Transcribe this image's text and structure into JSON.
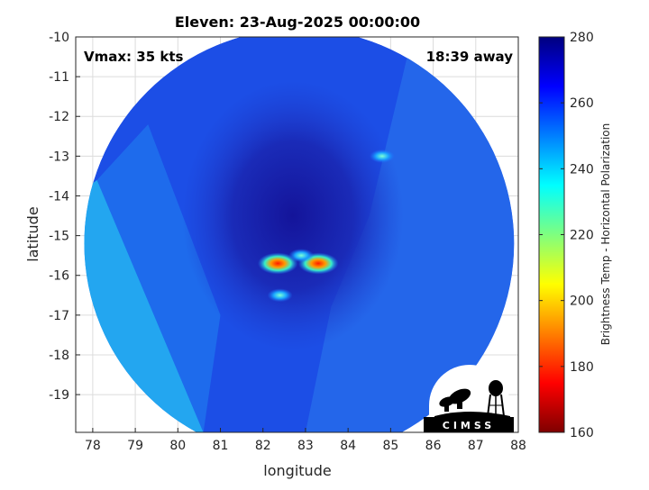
{
  "chart_data": {
    "type": "heatmap",
    "title": "Eleven: 23-Aug-2025 00:00:00",
    "xlabel": "longitude",
    "ylabel": "latitude",
    "xlim": [
      77.6,
      88
    ],
    "ylim": [
      -19.95,
      -10
    ],
    "x_ticks": [
      78,
      79,
      80,
      81,
      82,
      83,
      84,
      85,
      86,
      87,
      88
    ],
    "y_ticks": [
      -10,
      -11,
      -12,
      -13,
      -14,
      -15,
      -16,
      -17,
      -18,
      -19
    ],
    "grid": true,
    "annotations": {
      "vmax": "Vmax: 35 kts",
      "away": "18:39 away"
    },
    "colorbar": {
      "label": "Brightness Temp - Horizontal Polarization",
      "range": [
        160,
        280
      ],
      "ticks": [
        160,
        180,
        200,
        220,
        240,
        260,
        280
      ],
      "colormap": [
        "#7f0000",
        "#ff0000",
        "#ff7f00",
        "#ffff00",
        "#7fff7f",
        "#00ffff",
        "#007fff",
        "#0000ff",
        "#00007f"
      ]
    },
    "swath": {
      "center": [
        82.85,
        -15.2
      ],
      "radius_deg": 5.05
    },
    "features": [
      {
        "lon": 82.35,
        "lat": -15.7,
        "value": 172
      },
      {
        "lon": 83.3,
        "lat": -15.7,
        "value": 168
      },
      {
        "lon": 82.9,
        "lat": -15.5,
        "value": 215
      },
      {
        "lon": 82.4,
        "lat": -16.5,
        "value": 205
      },
      {
        "lon": 84.8,
        "lat": -13.0,
        "value": 215
      }
    ]
  },
  "logo": {
    "text": "CIMSS"
  }
}
